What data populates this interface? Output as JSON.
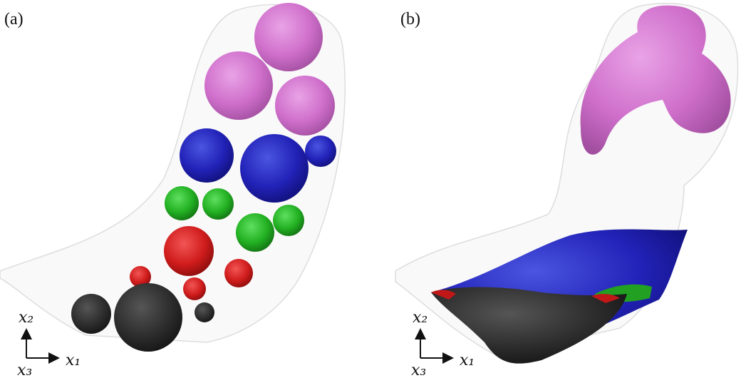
{
  "panels": [
    {
      "label": "(a)",
      "axes": {
        "vertical": "x₂",
        "horizontal": "x₁",
        "normal": "x₃"
      }
    },
    {
      "label": "(b)",
      "axes": {
        "vertical": "x₂",
        "horizontal": "x₁",
        "normal": "x₃"
      }
    }
  ]
}
